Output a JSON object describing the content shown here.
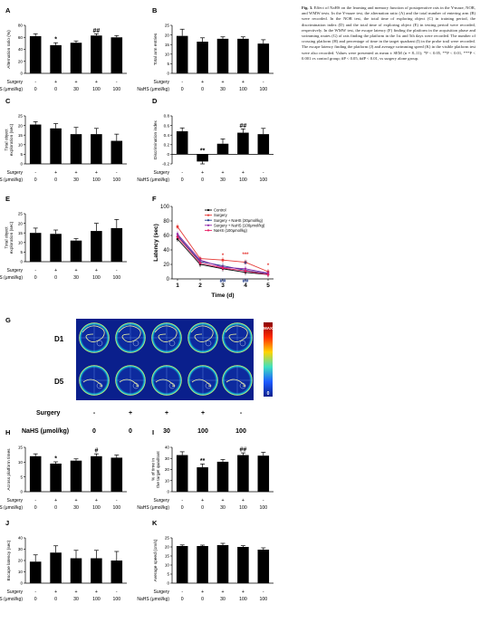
{
  "caption": {
    "label": "Fig. 3.",
    "text": "Effect of NaHS on the learning and memory function of postoperative rats in the Y-maze, NOR, and WMW tests. In the Y-maze test, the alternation ratio (A) and the total number of entering arm (B) were recorded. In the NOR test, the total time of exploring object (C) in training period, the discrimination index (D) and the total time of exploring object (E) in testing period were recorded, respectively. In the WMW test, the escape latency (F) finding the platform in the acquisition phase and swimming routes (G) of rats finding the platform in the 1st and 5th days were recorded. The number of crossing platform (H) and percentage of time in the target quadrant (I) in the probe trail were recorded. The escape latency finding the platform (J) and average swimming speed (K) in the visible platform test were also recorded. Values were presented as mean ± SEM (n = 8–11); *P < 0.05, **P < 0.01, ***P < 0.001 vs control group; #P < 0.05, ##P < 0.01, vs surgery alone group."
  },
  "group_labels": {
    "surgery_label": "Surgery",
    "nahs_label": "NaHS (μmol/kg)",
    "surgery": [
      "-",
      "+",
      "+",
      "+",
      "-"
    ],
    "nahs": [
      "0",
      "0",
      "30",
      "100",
      "100"
    ]
  },
  "panel_g": {
    "letter": "G",
    "row_labels": [
      "D1",
      "D5"
    ],
    "colorbar_top": "MAX",
    "colorbar_bottom": "0",
    "surgery_label": "Surgery",
    "nahs_label": "NaHS (μmol/kg)",
    "surgery": [
      "-",
      "+",
      "+",
      "+",
      "-"
    ],
    "nahs": [
      "0",
      "0",
      "30",
      "100",
      "100"
    ]
  },
  "chart_data": [
    {
      "id": "A",
      "type": "bar",
      "ylabel": "Alternation ratio (%)",
      "ylim": [
        0,
        80
      ],
      "yticks": [
        0,
        20,
        40,
        60,
        80
      ],
      "values": [
        62,
        47,
        51,
        63,
        60
      ],
      "errors": [
        4,
        4,
        3,
        3,
        3
      ],
      "marks": [
        "",
        "*",
        "",
        "##",
        ""
      ]
    },
    {
      "id": "B",
      "type": "bar",
      "ylabel": "Total arm entries",
      "ylim": [
        0,
        25
      ],
      "yticks": [
        0,
        5,
        10,
        15,
        20,
        25
      ],
      "values": [
        19.5,
        16.5,
        18,
        18,
        15.5
      ],
      "errors": [
        3.5,
        2,
        1,
        1,
        2
      ],
      "marks": [
        "",
        "",
        "",
        "",
        ""
      ]
    },
    {
      "id": "C",
      "type": "bar",
      "ylabel": "Total object exploration (sec)",
      "ylim": [
        0,
        25
      ],
      "yticks": [
        0,
        5,
        10,
        15,
        20,
        25
      ],
      "values": [
        20.5,
        18.5,
        15.5,
        15.5,
        12
      ],
      "errors": [
        1.5,
        2.5,
        3.5,
        3,
        3.5
      ],
      "marks": [
        "",
        "",
        "",
        "",
        ""
      ]
    },
    {
      "id": "D",
      "type": "bar",
      "ylabel": "Discrimination index",
      "ylim": [
        -0.2,
        0.8
      ],
      "yticks": [
        -0.2,
        0.0,
        0.2,
        0.4,
        0.6,
        0.8
      ],
      "values": [
        0.48,
        -0.15,
        0.22,
        0.45,
        0.42
      ],
      "errors": [
        0.07,
        0.05,
        0.1,
        0.08,
        0.12
      ],
      "marks": [
        "",
        "**",
        "",
        "##",
        ""
      ]
    },
    {
      "id": "E",
      "type": "bar",
      "ylabel": "Total object exploration (sec)",
      "ylim": [
        0,
        25
      ],
      "yticks": [
        0,
        5,
        10,
        15,
        20,
        25
      ],
      "values": [
        15,
        14.5,
        11,
        16,
        17.5
      ],
      "errors": [
        2.5,
        2,
        1,
        4,
        4.5
      ],
      "marks": [
        "",
        "",
        "",
        "",
        ""
      ]
    },
    {
      "id": "H",
      "type": "bar",
      "ylabel": "Across platform times",
      "ylim": [
        0,
        15
      ],
      "yticks": [
        0,
        5,
        10,
        15
      ],
      "values": [
        12,
        9.5,
        10.5,
        12,
        11.5
      ],
      "errors": [
        0.8,
        0.6,
        0.6,
        0.8,
        0.9
      ],
      "marks": [
        "",
        "*",
        "",
        "#",
        ""
      ]
    },
    {
      "id": "I",
      "type": "bar",
      "ylabel": "% of time in the target quadrant",
      "ylim": [
        0,
        40
      ],
      "yticks": [
        0,
        10,
        20,
        30,
        40
      ],
      "values": [
        33,
        22,
        27,
        33,
        32.5
      ],
      "errors": [
        3,
        3,
        2,
        2,
        3
      ],
      "marks": [
        "",
        "**",
        "",
        "##",
        ""
      ]
    },
    {
      "id": "J",
      "type": "bar",
      "ylabel": "Escape latency (sec)",
      "ylim": [
        0,
        40
      ],
      "yticks": [
        0,
        10,
        20,
        30,
        40
      ],
      "values": [
        19,
        27,
        22,
        22,
        20
      ],
      "errors": [
        6,
        6,
        7,
        7,
        8
      ],
      "marks": [
        "",
        "",
        "",
        "",
        ""
      ]
    },
    {
      "id": "K",
      "type": "bar",
      "ylabel": "Average speed (cm/s)",
      "ylim": [
        0,
        25
      ],
      "yticks": [
        0,
        5,
        10,
        15,
        20,
        25
      ],
      "values": [
        20.5,
        20.5,
        21,
        20,
        18.5
      ],
      "errors": [
        0.6,
        0.5,
        1,
        0.7,
        1
      ],
      "marks": [
        "",
        "",
        "",
        "",
        ""
      ]
    },
    {
      "id": "F",
      "type": "line",
      "xlabel": "Time (d)",
      "ylabel": "Latency (sec)",
      "x": [
        1,
        2,
        3,
        4,
        5
      ],
      "ylim": [
        0,
        100
      ],
      "yticks": [
        0,
        20,
        40,
        60,
        80,
        100
      ],
      "series": [
        {
          "name": "Control",
          "color": "#000000",
          "marker": "circle",
          "values": [
            55,
            20,
            14,
            9,
            6
          ]
        },
        {
          "name": "Surgery",
          "color": "#e53935",
          "marker": "square",
          "values": [
            72,
            28,
            26,
            23,
            10
          ]
        },
        {
          "name": "Surgery + NaHS (30μmol/kg)",
          "color": "#1e3a8a",
          "marker": "triangle",
          "values": [
            60,
            24,
            18,
            12,
            7
          ]
        },
        {
          "name": "Surgery + NaHS (100μmol/kg)",
          "color": "#8e24aa",
          "marker": "diamond",
          "values": [
            62,
            26,
            16,
            14,
            8
          ]
        },
        {
          "name": "NaHS (100μmol/kg)",
          "color": "#e91e63",
          "marker": "circle",
          "values": [
            58,
            22,
            15,
            11,
            6
          ]
        }
      ],
      "annotations": [
        {
          "x": 3,
          "text": "*",
          "pos": "above"
        },
        {
          "x": 4,
          "text": "***",
          "pos": "above"
        },
        {
          "x": 4,
          "text": "#",
          "pos": "mid"
        },
        {
          "x": 5,
          "text": "*",
          "pos": "above"
        },
        {
          "x": 3,
          "text": "##",
          "pos": "below"
        },
        {
          "x": 4,
          "text": "##",
          "pos": "below"
        }
      ]
    }
  ]
}
